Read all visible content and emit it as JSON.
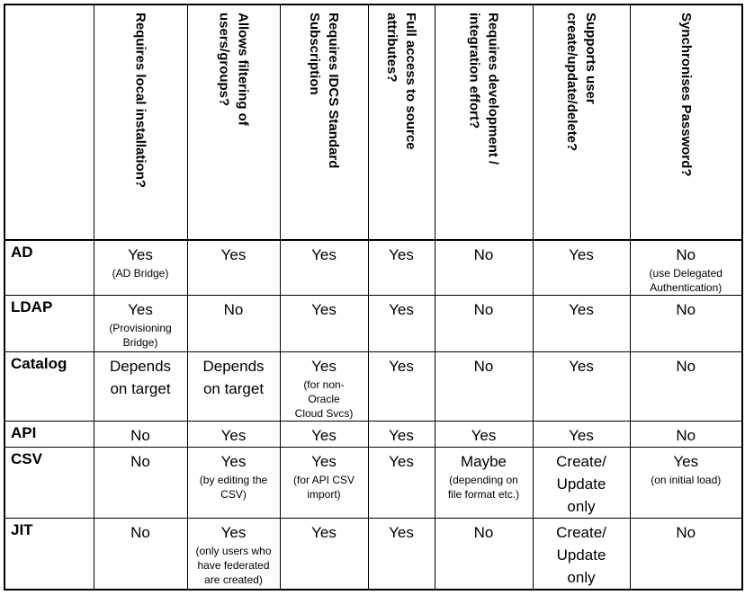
{
  "table": {
    "columns": [
      {
        "label": "Requires local installation?"
      },
      {
        "label": "Allows filtering of\nusers/groups?"
      },
      {
        "label": "Requires IDCS Standard\nSubscription"
      },
      {
        "label": "Full access to source\nattributes?"
      },
      {
        "label": "Requires development /\nintegration effort?"
      },
      {
        "label": "Supports user\ncreate/update/delete?"
      },
      {
        "label": "Synchronises Password?"
      }
    ],
    "rows": [
      {
        "label": "AD",
        "cells": [
          {
            "value": "Yes",
            "note": "(AD Bridge)"
          },
          {
            "value": "Yes"
          },
          {
            "value": "Yes"
          },
          {
            "value": "Yes"
          },
          {
            "value": "No"
          },
          {
            "value": "Yes"
          },
          {
            "value": "No",
            "note": "(use Delegated\nAuthentication)"
          }
        ]
      },
      {
        "label": "LDAP",
        "cells": [
          {
            "value": "Yes",
            "note": "(Provisioning\nBridge)"
          },
          {
            "value": "No"
          },
          {
            "value": "Yes"
          },
          {
            "value": "Yes"
          },
          {
            "value": "No"
          },
          {
            "value": "Yes"
          },
          {
            "value": "No"
          }
        ]
      },
      {
        "label": "Catalog",
        "cells": [
          {
            "value": "Depends\non target"
          },
          {
            "value": "Depends\non target"
          },
          {
            "value": "Yes",
            "note": "(for non-\nOracle\nCloud Svcs)"
          },
          {
            "value": "Yes"
          },
          {
            "value": "No"
          },
          {
            "value": "Yes"
          },
          {
            "value": "No"
          }
        ]
      },
      {
        "label": "API",
        "cells": [
          {
            "value": "No"
          },
          {
            "value": "Yes"
          },
          {
            "value": "Yes"
          },
          {
            "value": "Yes"
          },
          {
            "value": "Yes"
          },
          {
            "value": "Yes"
          },
          {
            "value": "No"
          }
        ]
      },
      {
        "label": "CSV",
        "cells": [
          {
            "value": "No"
          },
          {
            "value": "Yes",
            "note": "(by editing the\nCSV)"
          },
          {
            "value": "Yes",
            "note": "(for API CSV\nimport)"
          },
          {
            "value": "Yes"
          },
          {
            "value": "Maybe",
            "note": "(depending on\nfile format etc.)"
          },
          {
            "value": "Create/\nUpdate\nonly"
          },
          {
            "value": "Yes",
            "note": "(on initial load)"
          }
        ]
      },
      {
        "label": "JIT",
        "cells": [
          {
            "value": "No"
          },
          {
            "value": "Yes",
            "note": "(only users who\nhave federated\nare created)"
          },
          {
            "value": "Yes"
          },
          {
            "value": "Yes"
          },
          {
            "value": "No"
          },
          {
            "value": "Create/\nUpdate\nonly"
          },
          {
            "value": "No"
          }
        ]
      }
    ]
  }
}
